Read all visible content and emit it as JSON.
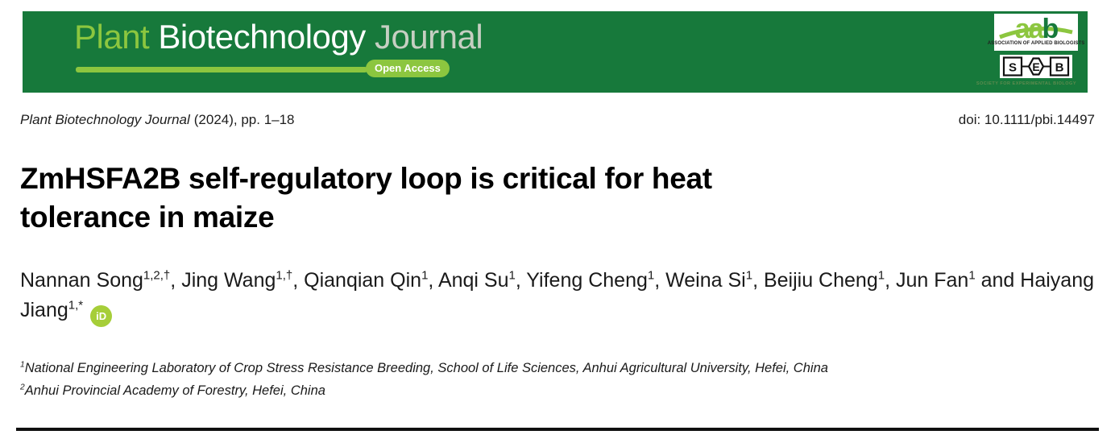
{
  "banner": {
    "word_plant": "Plant",
    "word_biotechnology": "Biotechnology",
    "word_journal": "Journal",
    "open_access_label": "Open Access",
    "colors": {
      "background": "#17793B",
      "accent_green": "#8CC63F"
    }
  },
  "logos": {
    "aab": {
      "letters_light": "aa",
      "letters_dark": "b",
      "caption": "ASSOCIATION OF APPLIED BIOLOGISTS"
    },
    "seb": {
      "letters": [
        "S",
        "E",
        "B"
      ],
      "caption": "SOCIETY FOR EXPERIMENTAL BIOLOGY"
    }
  },
  "citation": {
    "journal_italic": "Plant Biotechnology Journal",
    "issue_text": "(2024), pp. 1–18",
    "doi": "doi: 10.1111/pbi.14497"
  },
  "article": {
    "title_lines": [
      "ZmHSFA2B self-regulatory loop is critical for heat",
      "tolerance in maize"
    ],
    "author_separator": ", ",
    "author_last_separator": " and ",
    "authors": [
      {
        "name": "Nannan Song",
        "sup": "1,2,†"
      },
      {
        "name": "Jing Wang",
        "sup": "1,†"
      },
      {
        "name": "Qianqian Qin",
        "sup": "1"
      },
      {
        "name": "Anqi Su",
        "sup": "1"
      },
      {
        "name": "Yifeng Cheng",
        "sup": "1"
      },
      {
        "name": "Weina Si",
        "sup": "1"
      },
      {
        "name": "Beijiu Cheng",
        "sup": "1"
      },
      {
        "name": "Jun Fan",
        "sup": "1"
      },
      {
        "name": "Haiyang Jiang",
        "sup": "1,*",
        "orcid": true
      }
    ],
    "affiliations": [
      {
        "sup": "1",
        "text": "National Engineering Laboratory of Crop Stress Resistance Breeding, School of Life Sciences, Anhui Agricultural University, Hefei, China"
      },
      {
        "sup": "2",
        "text": "Anhui Provincial Academy of Forestry, Hefei, China"
      }
    ]
  },
  "icons": {
    "orcid_label": "iD",
    "orcid_color": "#A6CE39"
  }
}
